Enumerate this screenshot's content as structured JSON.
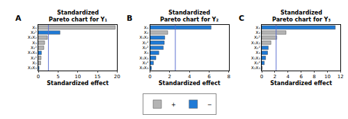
{
  "chart_data": [
    {
      "type": "bar",
      "orientation": "horizontal",
      "label": "A",
      "title": "Standardized Pareto chart for Y₁",
      "xlabel": "Standardized effect",
      "categories": [
        "X₁",
        "X₂²",
        "X₁X₂",
        "X₃",
        "X₁²",
        "X₁X₃",
        "X₃²",
        "X₂",
        "X₂X₃"
      ],
      "series": [
        {
          "name": "+",
          "color": "#b4b4b4",
          "values": [
            19.5,
            null,
            2.3,
            1.6,
            1.4,
            null,
            0.7,
            0.6,
            null
          ]
        },
        {
          "name": "−",
          "color": "#1f7ad6",
          "values": [
            null,
            5.5,
            null,
            null,
            null,
            0.8,
            null,
            null,
            0.2
          ]
        }
      ],
      "xlim": [
        0,
        20
      ],
      "xticks": [
        0,
        5,
        10,
        15,
        20
      ],
      "threshold": 2.57,
      "legend": "bottom"
    },
    {
      "type": "bar",
      "orientation": "horizontal",
      "label": "B",
      "title": "Standardized Pareto chart for Y₂",
      "xlabel": "Standardized effect",
      "categories": [
        "X₁",
        "X₂",
        "X₁X₂",
        "X₁²",
        "X₂²",
        "X₃",
        "X₁X₃",
        "X₃²",
        "X₂X₃"
      ],
      "series": [
        {
          "name": "+",
          "color": "#b4b4b4",
          "values": [
            null,
            1.8,
            null,
            null,
            null,
            null,
            null,
            null,
            null
          ]
        },
        {
          "name": "−",
          "color": "#1f7ad6",
          "values": [
            6.2,
            null,
            1.5,
            1.45,
            1.35,
            0.9,
            0.6,
            0.35,
            0.15
          ]
        }
      ],
      "xlim": [
        0,
        8
      ],
      "xticks": [
        0,
        2,
        4,
        6,
        8
      ],
      "threshold": 2.57
    },
    {
      "type": "bar",
      "orientation": "horizontal",
      "label": "C",
      "title": "Standardized Pareto chart for Y₃",
      "xlabel": "Standardized effect",
      "categories": [
        "X₁",
        "X₂",
        "X₂²",
        "X₁X₂",
        "X₁²",
        "X₃",
        "X₁X₃",
        "X₃²",
        "X₂X₃"
      ],
      "series": [
        {
          "name": "+",
          "color": "#b4b4b4",
          "values": [
            null,
            3.7,
            2.3,
            1.4,
            null,
            null,
            null,
            null,
            0.1
          ]
        },
        {
          "name": "−",
          "color": "#1f7ad6",
          "values": [
            11.2,
            null,
            null,
            null,
            1.0,
            0.9,
            0.6,
            0.4,
            null
          ]
        }
      ],
      "xlim": [
        0,
        12
      ],
      "xticks": [
        0,
        2,
        4,
        6,
        8,
        10,
        12
      ],
      "threshold": 2.2
    }
  ]
}
